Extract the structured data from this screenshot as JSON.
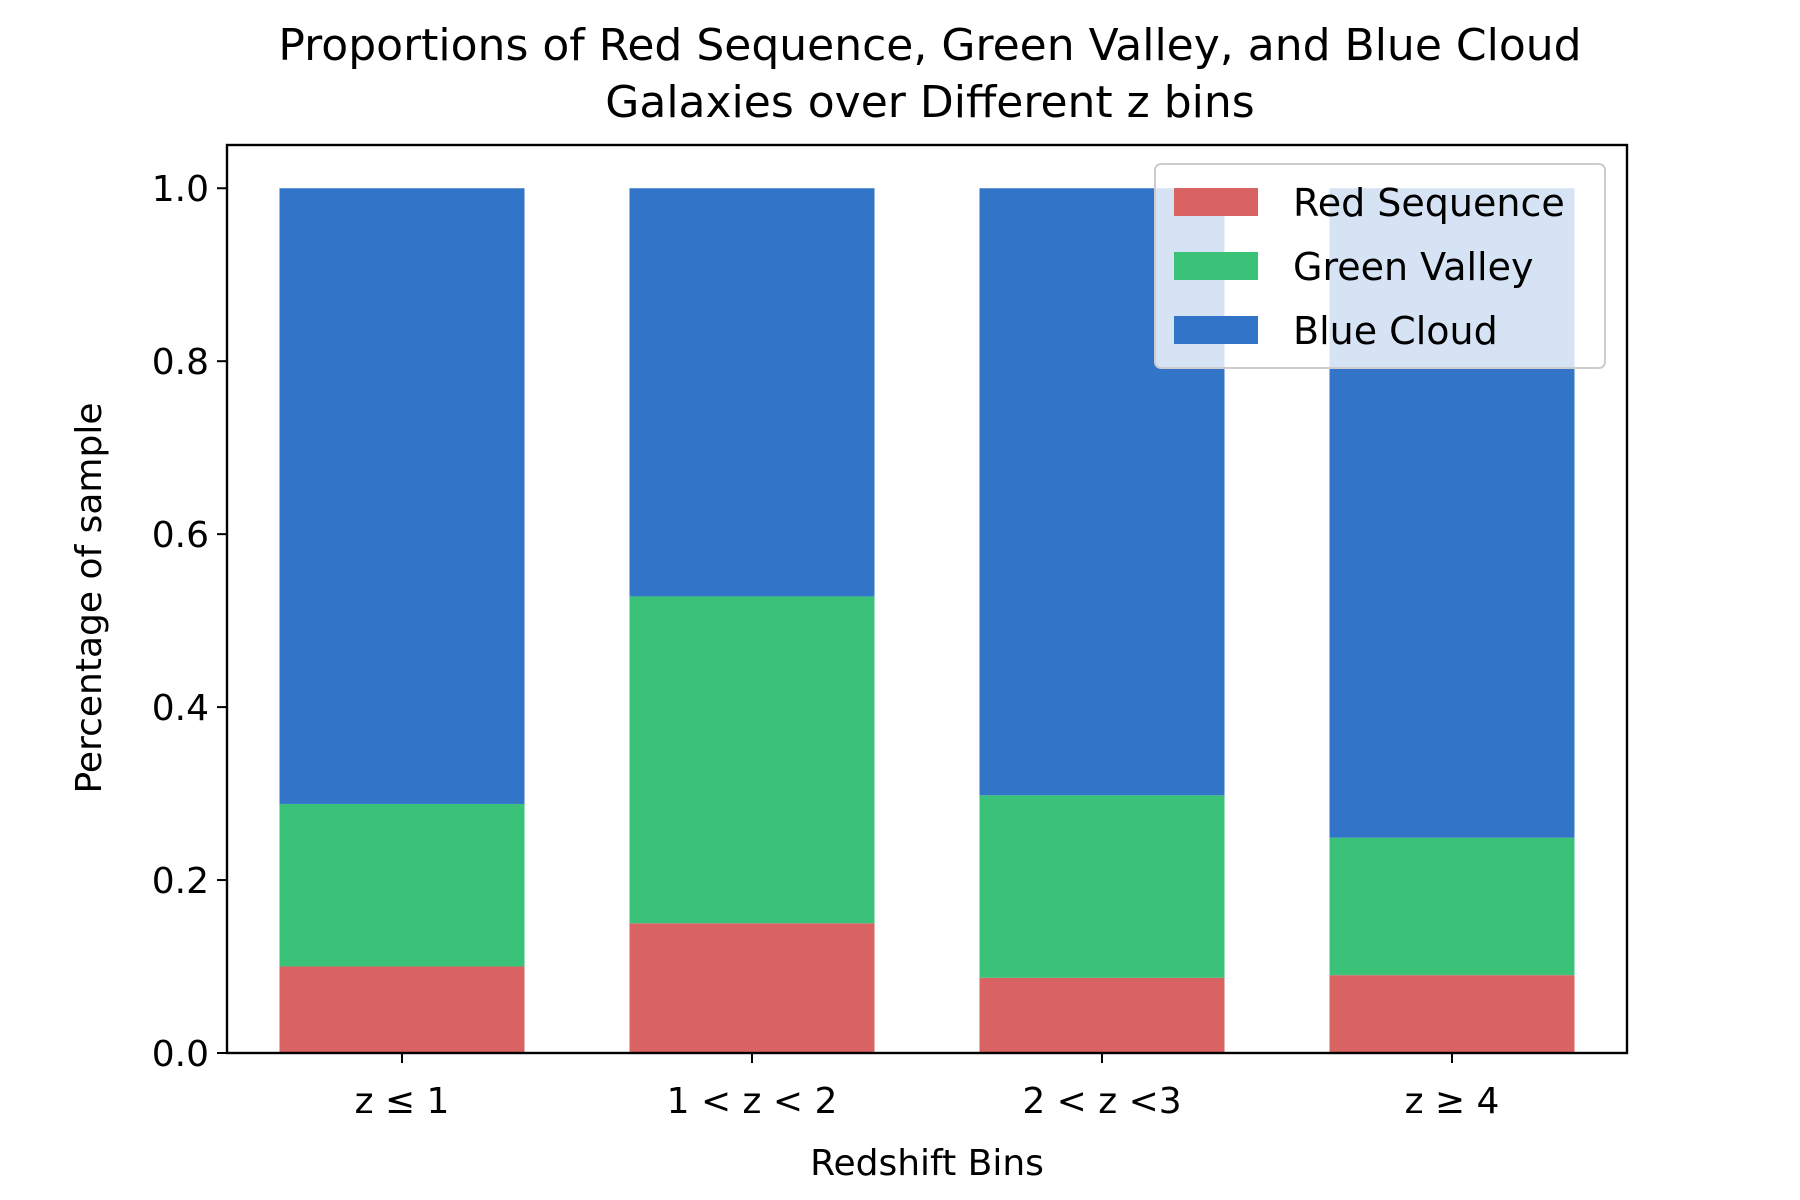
{
  "chart_data": {
    "type": "bar",
    "stacked": true,
    "title": "Proportions of Red Sequence, Green Valley, and Blue Cloud Galaxies over Different z bins",
    "title_lines": [
      "Proportions of Red Sequence, Green Valley, and Blue Cloud",
      "Galaxies over Different z bins"
    ],
    "xlabel": "Redshift Bins",
    "ylabel": "Percentage of sample",
    "categories": [
      "z ≤ 1",
      "1 < z < 2",
      "2 < z <3",
      "z ≥ 4"
    ],
    "ylim": [
      0,
      1.05
    ],
    "yticks": [
      0.0,
      0.2,
      0.4,
      0.6,
      0.8,
      1.0
    ],
    "ytick_labels": [
      "0.0",
      "0.2",
      "0.4",
      "0.6",
      "0.8",
      "1.0"
    ],
    "grid": false,
    "legend_position": "top-right",
    "series": [
      {
        "name": "Red Sequence",
        "color": "#d96262",
        "values": [
          0.1,
          0.15,
          0.087,
          0.09
        ]
      },
      {
        "name": "Green Valley",
        "color": "#3bc279",
        "values": [
          0.188,
          0.378,
          0.211,
          0.159
        ]
      },
      {
        "name": "Blue Cloud",
        "color": "#3274c7",
        "values": [
          0.712,
          0.472,
          0.702,
          0.751
        ]
      }
    ]
  }
}
